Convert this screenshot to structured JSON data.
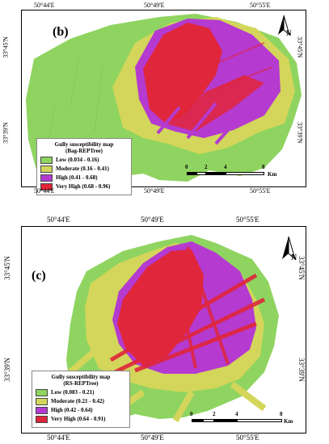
{
  "colors": {
    "low": "#8fd460",
    "moderate": "#d3d65a",
    "high": "#b43ad0",
    "very_high": "#e0263a"
  },
  "panel_b": {
    "label": "(b)",
    "top_coords": [
      "50°44'E",
      "50°49'E",
      "50°55'E"
    ],
    "bottom_coords": [
      "50°44'E",
      "50°49'E",
      "50°55'E"
    ],
    "left_coords": [
      "33°45'N",
      "33°39'N"
    ],
    "right_coords": [
      "33°45'N",
      "33°39'N"
    ],
    "legend": {
      "title_line1": "Gully susceptibility map",
      "title_line2": "(Bag-REPTree)",
      "items": [
        {
          "label": "Low (0.034 - 0.16)"
        },
        {
          "label": "Moderate (0.16 - 0.41)"
        },
        {
          "label": "High (0.41 - 0.68)"
        },
        {
          "label": "Very High (0.68 - 0.96)"
        }
      ]
    },
    "scale": {
      "ticks": [
        "0",
        "2",
        "4",
        "8"
      ],
      "unit": "Km"
    },
    "north": "N"
  },
  "panel_c": {
    "label": "(c)",
    "top_coords": [
      "50°44'E",
      "50°49'E",
      "50°55'E"
    ],
    "bottom_coords": [
      "50°44'E",
      "50°49'E",
      "50°55'E"
    ],
    "left_coords": [
      "33°45'N",
      "33°39'N"
    ],
    "right_coords": [
      "33°45'N",
      "33°39'N"
    ],
    "legend": {
      "title_line1": "Gully susceptibility map",
      "title_line2": "(RS-REPTree)",
      "items": [
        {
          "label": "Low (0.083 - 0.21)"
        },
        {
          "label": "Moderate (0.21 - 0.42)"
        },
        {
          "label": "High (0.42 - 0.64)"
        },
        {
          "label": "Very High (0.64 - 0.91)"
        }
      ]
    },
    "scale": {
      "ticks": [
        "0",
        "2",
        "4",
        "8"
      ],
      "unit": "Km"
    },
    "north": "N"
  }
}
